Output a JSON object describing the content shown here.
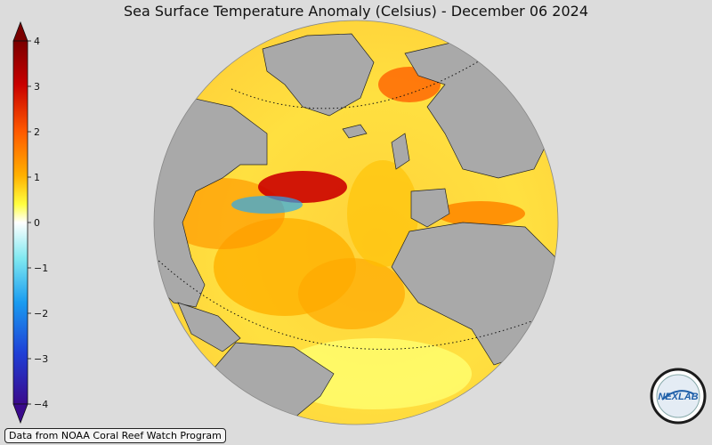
{
  "title": "Sea Surface Temperature Anomaly (Celsius) - December 06 2024",
  "colorbar": {
    "min": -4,
    "max": 4,
    "ticks": [
      "4",
      "3",
      "2",
      "1",
      "0",
      "−1",
      "−2",
      "−3",
      "−4"
    ],
    "colors": [
      "#3a0a8c",
      "#1f3fd6",
      "#1a9cf0",
      "#7fe8f0",
      "#ffffff",
      "#ffff40",
      "#ffb000",
      "#ff5a00",
      "#c80000",
      "#7a0000"
    ]
  },
  "map": {
    "land_color": "#a9a9a9",
    "projection": "orthographic globe centered on North Atlantic"
  },
  "credit": "Data from NOAA Coral Reef Watch Program",
  "logo": {
    "text": "NEXLAB",
    "icon": "nexlab-logo"
  }
}
